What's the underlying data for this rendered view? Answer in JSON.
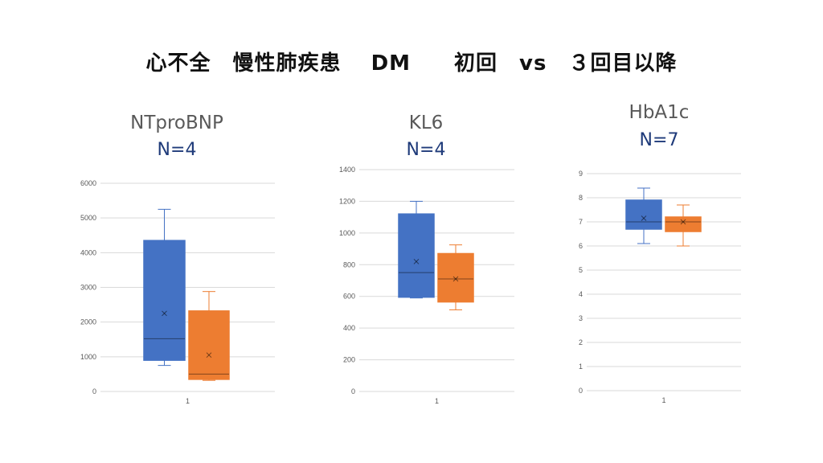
{
  "slide_title": "心不全　慢性肺疾患　 DM　　初回　vs　３回目以降",
  "colors": {
    "series1": "#4472c4",
    "series2": "#ed7d31",
    "grid": "#d9d9d9"
  },
  "chart_data": [
    {
      "type": "box",
      "title": "NTproBNP",
      "subtitle": "N=4",
      "categories": [
        "1"
      ],
      "ylim": [
        0,
        6000
      ],
      "yticks": [
        0,
        1000,
        2000,
        3000,
        4000,
        5000,
        6000
      ],
      "series": [
        {
          "min": 750,
          "q1": 900,
          "median": 1520,
          "q3": 4350,
          "max": 5250,
          "mean": 2250
        },
        {
          "min": 320,
          "q1": 350,
          "median": 500,
          "q3": 2320,
          "max": 2880,
          "mean": 1050
        }
      ]
    },
    {
      "type": "box",
      "title": "KL6",
      "subtitle": "N=4",
      "categories": [
        "1"
      ],
      "ylim": [
        0,
        1400
      ],
      "yticks": [
        0,
        200,
        400,
        600,
        800,
        1000,
        1200,
        1400
      ],
      "series": [
        {
          "min": 590,
          "q1": 595,
          "median": 750,
          "q3": 1120,
          "max": 1200,
          "mean": 820
        },
        {
          "min": 515,
          "q1": 565,
          "median": 710,
          "q3": 870,
          "max": 925,
          "mean": 710
        }
      ]
    },
    {
      "type": "box",
      "title": "HbA1c",
      "subtitle": "N=7",
      "categories": [
        "1"
      ],
      "ylim": [
        0,
        9
      ],
      "yticks": [
        0,
        1,
        2,
        3,
        4,
        5,
        6,
        7,
        8,
        9
      ],
      "series": [
        {
          "min": 6.1,
          "q1": 6.7,
          "median": 7.0,
          "q3": 7.9,
          "max": 8.4,
          "mean": 7.15
        },
        {
          "min": 6.0,
          "q1": 6.6,
          "median": 7.0,
          "q3": 7.2,
          "max": 7.7,
          "mean": 7.0
        }
      ]
    }
  ]
}
